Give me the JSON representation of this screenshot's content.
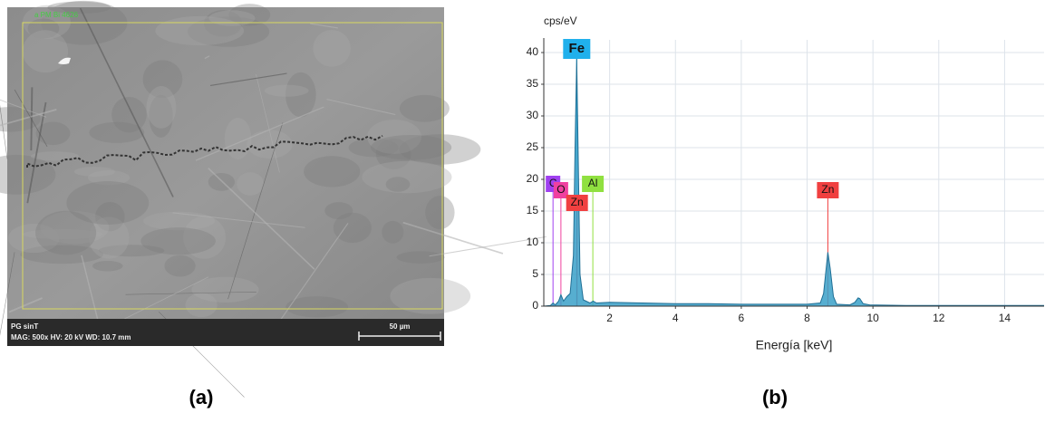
{
  "sem_image": {
    "top_note": "a PM Bi 4626",
    "sample": "PG sinT",
    "settings": "MAG: 500x   HV: 20 kV   WD: 10.7 mm",
    "scale_bar": "50 µm"
  },
  "panel_labels": [
    "(a)",
    "(b)"
  ],
  "chart_data": {
    "type": "area",
    "y_label": "cps/eV",
    "x_label": "Energía [keV]",
    "xlim": [
      0,
      15.2
    ],
    "ylim": [
      0,
      42
    ],
    "xticks": [
      2,
      4,
      6,
      8,
      10,
      12,
      14
    ],
    "yticks": [
      0,
      5,
      10,
      15,
      20,
      25,
      30,
      35,
      40
    ],
    "grid": true,
    "series": [
      {
        "color": "#3aa0c8",
        "x": [
          0,
          0.2,
          0.28,
          0.35,
          0.45,
          0.52,
          0.6,
          0.7,
          0.8,
          0.9,
          0.95,
          1.0,
          1.05,
          1.1,
          1.2,
          1.4,
          1.5,
          1.6,
          2,
          3,
          4,
          5,
          6,
          7,
          8,
          8.4,
          8.5,
          8.6,
          8.63,
          8.7,
          8.8,
          8.9,
          9.3,
          9.45,
          9.55,
          9.6,
          9.7,
          9.9,
          11,
          13,
          15.2
        ],
        "values": [
          0,
          0.1,
          0.5,
          0.2,
          0.8,
          1.8,
          0.8,
          1.5,
          2,
          8,
          25,
          39,
          22,
          5,
          1,
          0.5,
          0.8,
          0.5,
          0.6,
          0.5,
          0.4,
          0.4,
          0.3,
          0.3,
          0.3,
          0.5,
          2,
          7,
          8.5,
          6,
          1.5,
          0.3,
          0.2,
          0.6,
          1.3,
          1.2,
          0.4,
          0.2,
          0.1,
          0.1,
          0.1
        ]
      }
    ],
    "markers": [
      {
        "label": "C",
        "x": 0.28,
        "height": 18,
        "color": "#a040f0"
      },
      {
        "label": "O",
        "x": 0.52,
        "height": 17,
        "color": "#f040a0"
      },
      {
        "label": "Fe",
        "x": 1.0,
        "height": 39,
        "color": "#20b0ec"
      },
      {
        "label": "Zn",
        "x": 1.01,
        "height": 15,
        "color": "#f04040"
      },
      {
        "label": "Al",
        "x": 1.49,
        "height": 18,
        "color": "#90e040"
      },
      {
        "label": "Zn",
        "x": 8.63,
        "height": 17,
        "color": "#f04040"
      }
    ]
  }
}
